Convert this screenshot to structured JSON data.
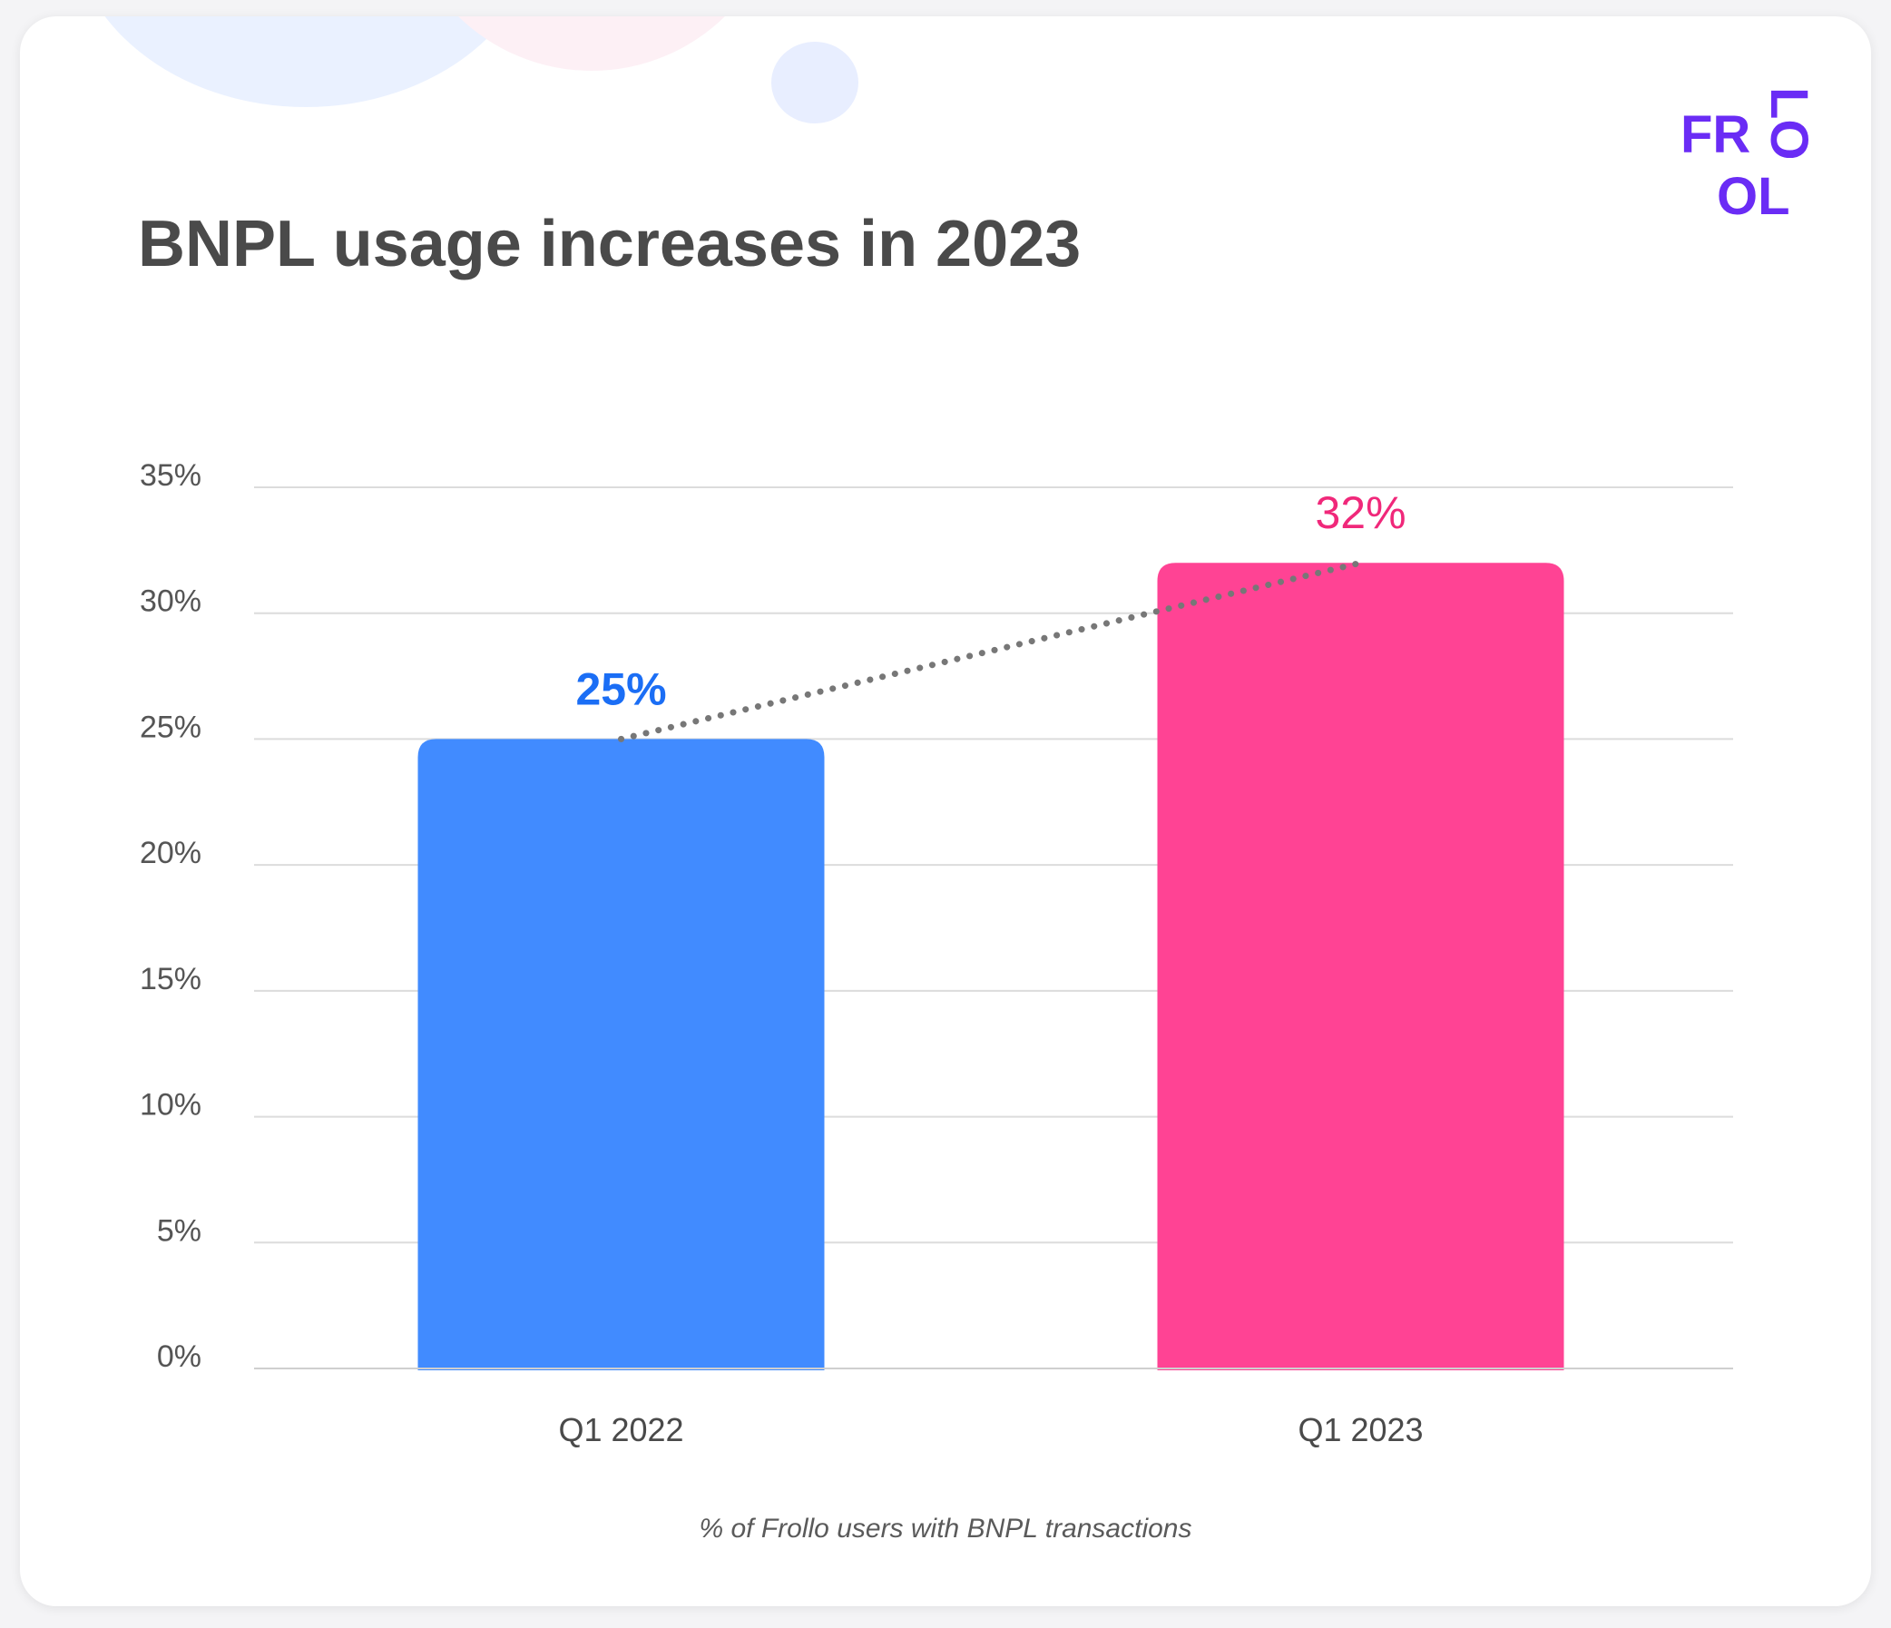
{
  "title": "BNPL usage increases in 2023",
  "logo": {
    "line1": "FR",
    "line2": "OL",
    "vertical": "LO",
    "color": "#6a2cf5"
  },
  "caption": "% of Frollo users with BNPL transactions",
  "chart_data": {
    "type": "bar",
    "categories": [
      "Q1 2022",
      "Q1 2023"
    ],
    "values": [
      25,
      32
    ],
    "data_labels": [
      "25%",
      "32%"
    ],
    "ylim": [
      0,
      35
    ],
    "yticks": [
      0,
      5,
      10,
      15,
      20,
      25,
      30,
      35
    ],
    "ytick_labels": [
      "0%",
      "5%",
      "10%",
      "15%",
      "20%",
      "25%",
      "30%",
      "35%"
    ],
    "bar_colors": [
      "#418bff",
      "#ff4394"
    ],
    "label_colors": [
      "#1b6ef5",
      "#f0287a"
    ],
    "trend_line": "dotted",
    "trend_color": "#777777",
    "grid": true,
    "legend": "none"
  }
}
